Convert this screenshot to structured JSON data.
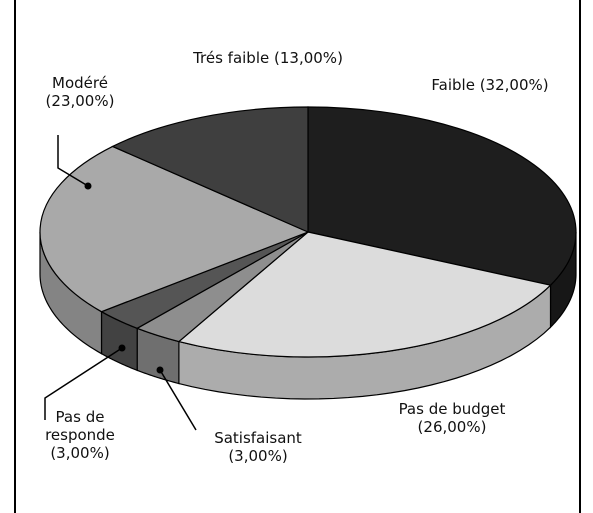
{
  "chart_data": {
    "type": "pie",
    "categories": [
      "Faible",
      "Pas de budget",
      "Satisfaisant",
      "Pas de responde",
      "Modéré",
      "Trés faible"
    ],
    "values": [
      32,
      26,
      3,
      3,
      23,
      13
    ],
    "value_labels": [
      "(32,00%)",
      "(26,00%)",
      "(3,00%)",
      "(3,00%)",
      "(23,00%)",
      "(13,00%)"
    ],
    "colors": [
      "#1e1e1e",
      "#dcdcdc",
      "#8e8e8e",
      "#555555",
      "#a9a9a9",
      "#3f3f3f"
    ]
  }
}
